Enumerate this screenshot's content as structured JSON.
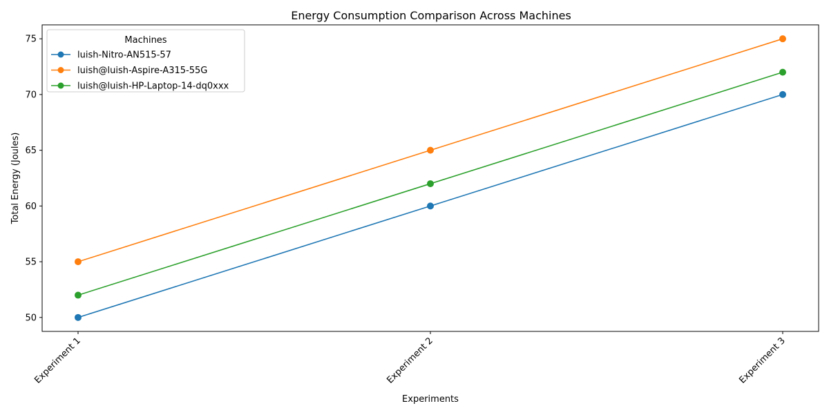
{
  "chart_data": {
    "type": "line",
    "title": "Energy Consumption Comparison Across Machines",
    "xlabel": "Experiments",
    "ylabel": "Total Energy (Joules)",
    "categories": [
      "Experiment 1",
      "Experiment 2",
      "Experiment 3"
    ],
    "ylim": [
      48.75,
      76.25
    ],
    "yticks": [
      50,
      55,
      60,
      65,
      70,
      75
    ],
    "grid": false,
    "legend": {
      "title": "Machines",
      "placement": "top-left"
    },
    "series": [
      {
        "name": "luish-Nitro-AN515-57",
        "color": "#1f77b4",
        "values": [
          50,
          60,
          70
        ]
      },
      {
        "name": "luish@luish-Aspire-A315-55G",
        "color": "#ff7f0e",
        "values": [
          55,
          65,
          75
        ]
      },
      {
        "name": "luish@luish-HP-Laptop-14-dq0xxx",
        "color": "#2ca02c",
        "values": [
          52,
          62,
          72
        ]
      }
    ]
  }
}
